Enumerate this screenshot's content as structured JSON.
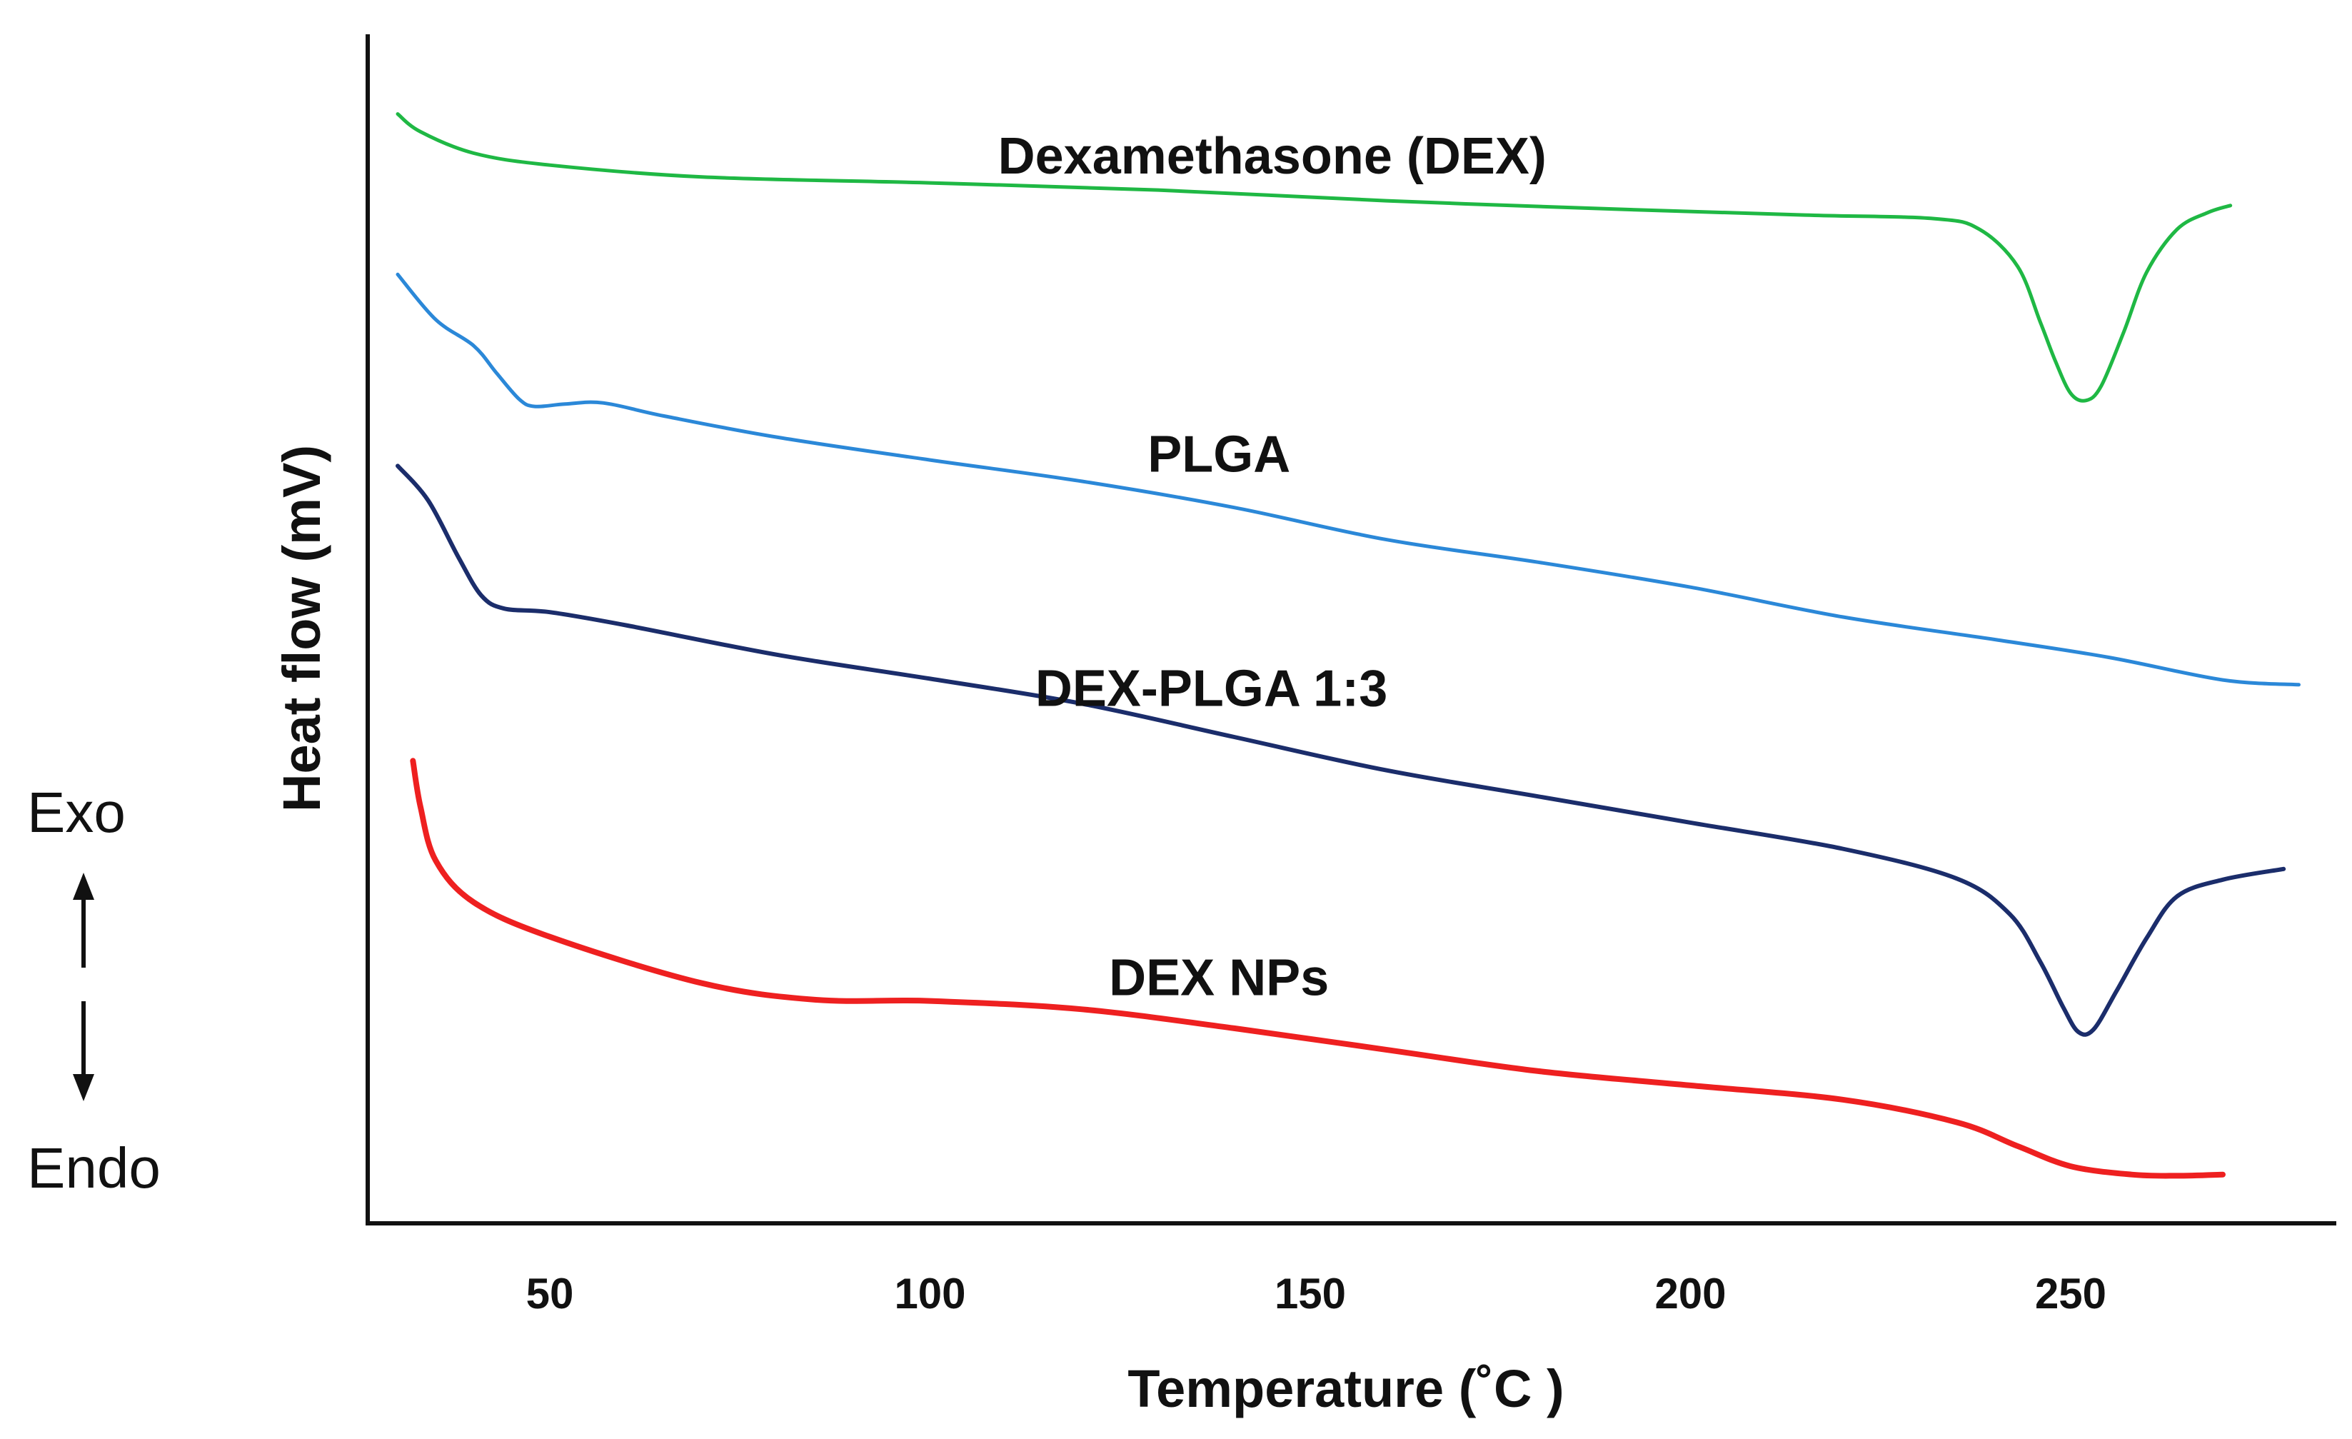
{
  "chart_data": {
    "type": "line",
    "title": "",
    "xlabel": "Temperature (˚C )",
    "ylabel": "Heat flow (mV)",
    "xlim": [
      30,
      280
    ],
    "ylim": [
      0,
      100
    ],
    "x_ticks": [
      50,
      100,
      150,
      200,
      250
    ],
    "grid": false,
    "legend": "none",
    "direction_labels": {
      "exo": "Exo",
      "endo": "Endo"
    },
    "series": [
      {
        "name": "Dexamethasone (DEX)",
        "color": "#1fb844",
        "stroke": 5,
        "label_at": [
          145,
          88.3
        ],
        "points": [
          [
            30,
            93.3
          ],
          [
            33,
            91.8
          ],
          [
            40,
            90.0
          ],
          [
            50,
            89.0
          ],
          [
            70,
            88.0
          ],
          [
            100,
            87.5
          ],
          [
            130,
            86.9
          ],
          [
            160,
            86.0
          ],
          [
            190,
            85.3
          ],
          [
            215,
            84.8
          ],
          [
            232,
            84.5
          ],
          [
            238,
            83.6
          ],
          [
            243,
            80.5
          ],
          [
            246,
            75.8
          ],
          [
            248,
            72.5
          ],
          [
            250,
            69.8
          ],
          [
            252,
            69.2
          ],
          [
            254,
            70.4
          ],
          [
            257,
            75.0
          ],
          [
            260,
            80.0
          ],
          [
            264,
            83.6
          ],
          [
            268,
            85.0
          ],
          [
            271,
            85.6
          ]
        ]
      },
      {
        "name": "PLGA",
        "color": "#2b88d8",
        "stroke": 5,
        "label_at": [
          138,
          63.2
        ],
        "points": [
          [
            30,
            79.8
          ],
          [
            35,
            76.0
          ],
          [
            40,
            73.8
          ],
          [
            43,
            71.5
          ],
          [
            46,
            69.3
          ],
          [
            48,
            68.7
          ],
          [
            52,
            68.9
          ],
          [
            57,
            69.0
          ],
          [
            65,
            67.9
          ],
          [
            80,
            66.1
          ],
          [
            100,
            64.2
          ],
          [
            120,
            62.4
          ],
          [
            140,
            60.2
          ],
          [
            160,
            57.5
          ],
          [
            180,
            55.6
          ],
          [
            200,
            53.5
          ],
          [
            220,
            51.0
          ],
          [
            240,
            49.1
          ],
          [
            255,
            47.6
          ],
          [
            270,
            45.7
          ],
          [
            280,
            45.3
          ]
        ]
      },
      {
        "name": "DEX-PLGA 1:3",
        "color": "#1b2d6b",
        "stroke": 6,
        "label_at": [
          137,
          43.5
        ],
        "points": [
          [
            30,
            63.7
          ],
          [
            34,
            60.8
          ],
          [
            38,
            56.0
          ],
          [
            41,
            52.8
          ],
          [
            44,
            51.7
          ],
          [
            50,
            51.4
          ],
          [
            60,
            50.3
          ],
          [
            80,
            47.8
          ],
          [
            100,
            45.8
          ],
          [
            120,
            43.7
          ],
          [
            140,
            40.9
          ],
          [
            160,
            38.1
          ],
          [
            180,
            35.9
          ],
          [
            200,
            33.7
          ],
          [
            220,
            31.5
          ],
          [
            235,
            29.0
          ],
          [
            242,
            26.0
          ],
          [
            246,
            22.0
          ],
          [
            249,
            18.2
          ],
          [
            251,
            16.1
          ],
          [
            253,
            16.3
          ],
          [
            256,
            19.5
          ],
          [
            260,
            24.0
          ],
          [
            264,
            27.5
          ],
          [
            270,
            28.9
          ],
          [
            278,
            29.8
          ]
        ]
      },
      {
        "name": "DEX NPs",
        "color": "#ee2020",
        "stroke": 8,
        "label_at": [
          138,
          19.2
        ],
        "points": [
          [
            32,
            38.9
          ],
          [
            33,
            35.0
          ],
          [
            35,
            30.5
          ],
          [
            40,
            27.0
          ],
          [
            50,
            24.1
          ],
          [
            70,
            20.2
          ],
          [
            85,
            18.8
          ],
          [
            100,
            18.7
          ],
          [
            120,
            18.0
          ],
          [
            140,
            16.4
          ],
          [
            160,
            14.6
          ],
          [
            180,
            12.8
          ],
          [
            200,
            11.6
          ],
          [
            220,
            10.4
          ],
          [
            235,
            8.5
          ],
          [
            243,
            6.5
          ],
          [
            250,
            4.8
          ],
          [
            258,
            4.1
          ],
          [
            264,
            4.0
          ],
          [
            270,
            4.1
          ]
        ]
      }
    ]
  }
}
